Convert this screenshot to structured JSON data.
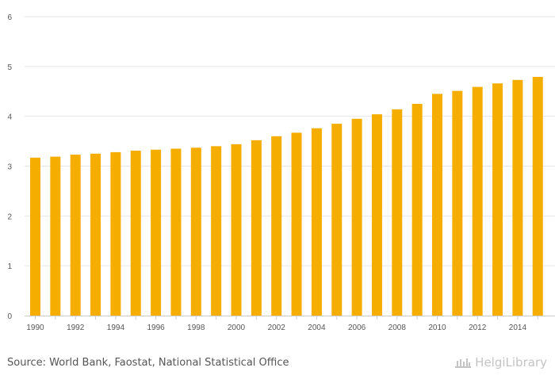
{
  "chart_data": {
    "type": "bar",
    "categories": [
      "1990",
      "1991",
      "1992",
      "1993",
      "1994",
      "1995",
      "1996",
      "1997",
      "1998",
      "1999",
      "2000",
      "2001",
      "2002",
      "2003",
      "2004",
      "2005",
      "2006",
      "2007",
      "2008",
      "2009",
      "2010",
      "2011",
      "2012",
      "2013",
      "2014",
      "2015"
    ],
    "x_tick_labels": [
      "1990",
      "1992",
      "1994",
      "1996",
      "1998",
      "2000",
      "2002",
      "2004",
      "2006",
      "2008",
      "2010",
      "2012",
      "2014"
    ],
    "values": [
      3.17,
      3.19,
      3.23,
      3.25,
      3.28,
      3.31,
      3.33,
      3.35,
      3.37,
      3.4,
      3.44,
      3.52,
      3.6,
      3.67,
      3.76,
      3.85,
      3.95,
      4.04,
      4.14,
      4.25,
      4.45,
      4.51,
      4.59,
      4.66,
      4.73,
      4.79
    ],
    "y_ticks": [
      0,
      1,
      2,
      3,
      4,
      5,
      6
    ],
    "ylim": [
      0,
      6
    ],
    "title": "",
    "xlabel": "",
    "ylabel": "",
    "grid": true,
    "bar_color": "#f5ad00",
    "grid_color": "#e6e6e6"
  },
  "footer": {
    "source": "Source: World Bank, Faostat, National Statistical Office",
    "logo_text": "HelgiLibrary"
  }
}
